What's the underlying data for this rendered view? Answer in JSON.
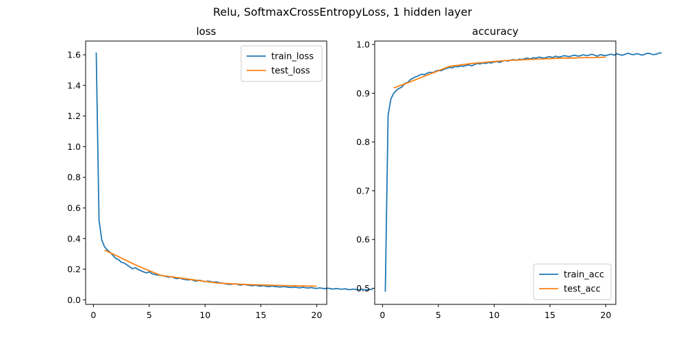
{
  "figure": {
    "suptitle": "Relu, SoftmaxCrossEntropyLoss, 1 hidden layer"
  },
  "colors": {
    "train": "#1f77b4",
    "test": "#ff7f0e"
  },
  "chart_data": [
    {
      "type": "line",
      "title": "loss",
      "xlabel": "",
      "ylabel": "",
      "xlim": [
        -0.7,
        20.9
      ],
      "ylim": [
        -0.03,
        1.69
      ],
      "xticks": [
        0,
        5,
        10,
        15,
        20
      ],
      "yticks": [
        0.0,
        0.2,
        0.4,
        0.6,
        0.8,
        1.0,
        1.2,
        1.4,
        1.6
      ],
      "ytick_labels": [
        "0.0",
        "0.2",
        "0.4",
        "0.6",
        "0.8",
        "1.0",
        "1.2",
        "1.4",
        "1.6"
      ],
      "legend": "upper right",
      "series": [
        {
          "name": "train_loss",
          "color": "#1f77b4",
          "x_start": 0.25,
          "x_step": 0.25,
          "y": [
            1.615,
            0.52,
            0.39,
            0.345,
            0.325,
            0.31,
            0.29,
            0.27,
            0.262,
            0.245,
            0.24,
            0.228,
            0.215,
            0.202,
            0.21,
            0.198,
            0.19,
            0.182,
            0.176,
            0.182,
            0.17,
            0.165,
            0.162,
            0.16,
            0.158,
            0.152,
            0.148,
            0.152,
            0.142,
            0.138,
            0.141,
            0.135,
            0.132,
            0.13,
            0.133,
            0.125,
            0.122,
            0.128,
            0.123,
            0.118,
            0.122,
            0.119,
            0.114,
            0.117,
            0.112,
            0.109,
            0.106,
            0.102,
            0.1,
            0.103,
            0.105,
            0.098,
            0.096,
            0.101,
            0.097,
            0.094,
            0.092,
            0.095,
            0.091,
            0.089,
            0.093,
            0.088,
            0.086,
            0.09,
            0.087,
            0.085,
            0.083,
            0.087,
            0.084,
            0.082,
            0.08,
            0.084,
            0.08,
            0.078,
            0.082,
            0.079,
            0.077,
            0.08,
            0.076,
            0.074,
            0.078,
            0.075,
            0.073,
            0.076,
            0.072,
            0.07,
            0.074,
            0.071,
            0.069,
            0.072,
            0.068,
            0.066,
            0.07,
            0.067,
            0.065,
            0.069,
            0.066,
            0.064,
            0.068,
            0.067
          ]
        },
        {
          "name": "test_loss",
          "color": "#ff7f0e",
          "x": [
            1,
            2,
            3,
            4,
            5,
            6,
            7,
            8,
            9,
            10,
            11,
            12,
            13,
            14,
            15,
            16,
            17,
            18,
            19,
            20
          ],
          "y": [
            0.325,
            0.29,
            0.255,
            0.22,
            0.19,
            0.16,
            0.15,
            0.14,
            0.13,
            0.12,
            0.11,
            0.106,
            0.102,
            0.099,
            0.097,
            0.095,
            0.093,
            0.091,
            0.09,
            0.089
          ]
        }
      ]
    },
    {
      "type": "line",
      "title": "accuracy",
      "xlabel": "",
      "ylabel": "",
      "xlim": [
        -0.7,
        20.9
      ],
      "ylim": [
        0.467,
        1.007
      ],
      "xticks": [
        0,
        5,
        10,
        15,
        20
      ],
      "yticks": [
        0.5,
        0.6,
        0.7,
        0.8,
        0.9,
        1.0
      ],
      "ytick_labels": [
        "0.5",
        "0.6",
        "0.7",
        "0.8",
        "0.9",
        "1.0"
      ],
      "legend": "lower right",
      "series": [
        {
          "name": "train_acc",
          "color": "#1f77b4",
          "x_start": 0.25,
          "x_step": 0.25,
          "y": [
            0.493,
            0.855,
            0.888,
            0.9,
            0.906,
            0.91,
            0.913,
            0.92,
            0.922,
            0.928,
            0.931,
            0.934,
            0.936,
            0.939,
            0.938,
            0.941,
            0.943,
            0.942,
            0.945,
            0.947,
            0.946,
            0.949,
            0.951,
            0.953,
            0.952,
            0.955,
            0.954,
            0.956,
            0.955,
            0.957,
            0.958,
            0.956,
            0.959,
            0.961,
            0.96,
            0.962,
            0.961,
            0.963,
            0.962,
            0.964,
            0.965,
            0.963,
            0.966,
            0.967,
            0.966,
            0.968,
            0.969,
            0.967,
            0.97,
            0.969,
            0.971,
            0.972,
            0.97,
            0.973,
            0.972,
            0.974,
            0.973,
            0.972,
            0.974,
            0.975,
            0.973,
            0.976,
            0.974,
            0.975,
            0.977,
            0.976,
            0.975,
            0.977,
            0.978,
            0.976,
            0.977,
            0.979,
            0.977,
            0.978,
            0.98,
            0.978,
            0.976,
            0.979,
            0.978,
            0.977,
            0.979,
            0.98,
            0.978,
            0.981,
            0.979,
            0.978,
            0.98,
            0.982,
            0.98,
            0.979,
            0.981,
            0.98,
            0.978,
            0.98,
            0.982,
            0.981,
            0.979,
            0.98,
            0.982,
            0.983
          ]
        },
        {
          "name": "test_acc",
          "color": "#ff7f0e",
          "x": [
            1,
            2,
            3,
            4,
            5,
            6,
            7,
            8,
            9,
            10,
            11,
            12,
            13,
            14,
            15,
            16,
            17,
            18,
            19,
            20
          ],
          "y": [
            0.911,
            0.919,
            0.928,
            0.937,
            0.946,
            0.955,
            0.958,
            0.961,
            0.963,
            0.965,
            0.967,
            0.968,
            0.969,
            0.97,
            0.971,
            0.972,
            0.972,
            0.973,
            0.973,
            0.974
          ]
        }
      ]
    }
  ]
}
